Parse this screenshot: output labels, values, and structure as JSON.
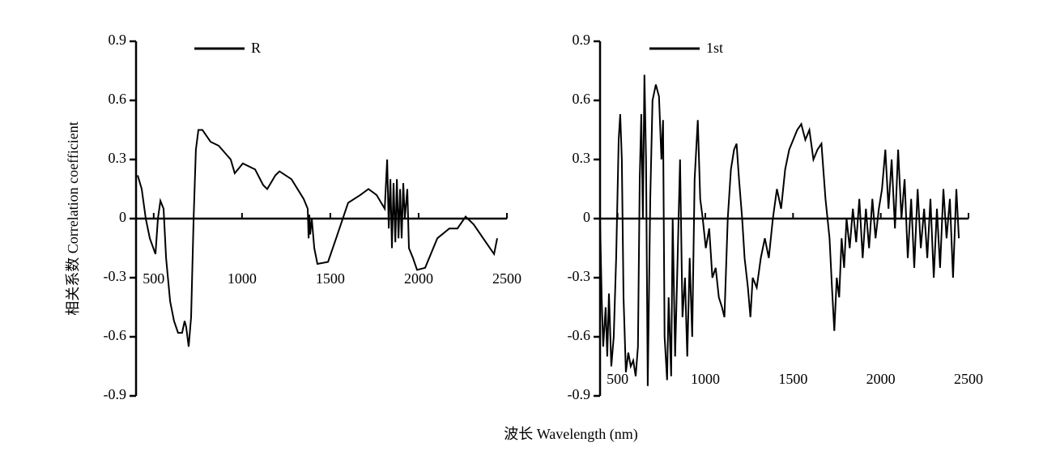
{
  "ylabel": "相关系数 Correlation coefficient",
  "xlabel": "波长 Wavelength (nm)",
  "chart_data": [
    {
      "type": "line",
      "xlim": [
        400,
        2500
      ],
      "ylim": [
        -0.9,
        0.9
      ],
      "xticks": [
        500,
        1000,
        1500,
        2000,
        2500
      ],
      "yticks": [
        0.9,
        0.6,
        0.3,
        0,
        -0.3,
        -0.6,
        -0.9
      ],
      "x": [
        409,
        432,
        455,
        478,
        510,
        524,
        538,
        556,
        570,
        593,
        615,
        638,
        661,
        675,
        684,
        698,
        712,
        726,
        739,
        753,
        776,
        822,
        868,
        936,
        959,
        1005,
        1074,
        1120,
        1143,
        1189,
        1212,
        1280,
        1349,
        1372,
        1377,
        1381,
        1386,
        1395,
        1409,
        1427,
        1487,
        1533,
        1601,
        1670,
        1716,
        1762,
        1808,
        1822,
        1831,
        1840,
        1849,
        1858,
        1868,
        1877,
        1886,
        1895,
        1904,
        1913,
        1922,
        1936,
        1945,
        1968,
        1991,
        2037,
        2106,
        2174,
        2220,
        2266,
        2312,
        2381,
        2427,
        2445
      ],
      "series": [
        {
          "name": "R",
          "color": "#000000",
          "values": [
            0.22,
            0.15,
            0.0,
            -0.1,
            -0.18,
            0.0,
            0.09,
            0.05,
            -0.2,
            -0.42,
            -0.52,
            -0.58,
            -0.58,
            -0.52,
            -0.55,
            -0.65,
            -0.5,
            0.0,
            0.35,
            0.45,
            0.45,
            0.39,
            0.37,
            0.3,
            0.23,
            0.28,
            0.25,
            0.17,
            0.15,
            0.22,
            0.24,
            0.2,
            0.1,
            0.05,
            -0.1,
            0.02,
            -0.08,
            0.0,
            -0.15,
            -0.23,
            -0.22,
            -0.1,
            0.08,
            0.12,
            0.15,
            0.12,
            0.05,
            0.3,
            -0.05,
            0.2,
            -0.15,
            0.18,
            -0.12,
            0.2,
            -0.1,
            0.15,
            -0.1,
            0.18,
            0.0,
            0.15,
            -0.15,
            -0.2,
            -0.26,
            -0.25,
            -0.1,
            -0.05,
            -0.05,
            0.01,
            -0.03,
            -0.12,
            -0.18,
            -0.1
          ]
        }
      ]
    },
    {
      "type": "line",
      "xlim": [
        400,
        2500
      ],
      "ylim": [
        -0.9,
        0.9
      ],
      "xticks": [
        500,
        1000,
        1500,
        2000,
        2500
      ],
      "yticks": [
        0.9,
        0.6,
        0.3,
        0,
        -0.3,
        -0.6,
        -0.9
      ],
      "x": [
        400,
        409,
        418,
        432,
        441,
        451,
        464,
        478,
        492,
        506,
        515,
        524,
        534,
        547,
        561,
        575,
        589,
        603,
        616,
        626,
        635,
        644,
        653,
        662,
        672,
        686,
        699,
        718,
        736,
        750,
        759,
        768,
        782,
        791,
        805,
        814,
        828,
        842,
        856,
        870,
        884,
        897,
        911,
        925,
        939,
        957,
        971,
        985,
        1003,
        1022,
        1040,
        1059,
        1077,
        1095,
        1109,
        1128,
        1146,
        1164,
        1178,
        1192,
        1210,
        1224,
        1243,
        1257,
        1270,
        1293,
        1316,
        1339,
        1362,
        1385,
        1408,
        1432,
        1455,
        1478,
        1501,
        1524,
        1547,
        1570,
        1593,
        1616,
        1639,
        1662,
        1685,
        1708,
        1722,
        1735,
        1749,
        1763,
        1777,
        1791,
        1805,
        1823,
        1841,
        1860,
        1878,
        1897,
        1915,
        1933,
        1952,
        1970,
        1989,
        2007,
        2026,
        2044,
        2062,
        2081,
        2099,
        2118,
        2136,
        2154,
        2173,
        2191,
        2210,
        2228,
        2247,
        2265,
        2283,
        2302,
        2320,
        2338,
        2357,
        2375,
        2394,
        2412,
        2431,
        2445
      ],
      "series": [
        {
          "name": "1st",
          "color": "#000000",
          "values": [
            0.0,
            -0.4,
            -0.65,
            -0.45,
            -0.7,
            -0.38,
            -0.75,
            -0.6,
            -0.2,
            0.4,
            0.53,
            0.3,
            -0.4,
            -0.78,
            -0.68,
            -0.75,
            -0.72,
            -0.8,
            -0.65,
            0.2,
            0.53,
            0.0,
            0.73,
            0.3,
            -0.85,
            0.1,
            0.6,
            0.68,
            0.62,
            0.3,
            0.5,
            -0.6,
            -0.82,
            -0.4,
            -0.8,
            0.0,
            -0.7,
            -0.2,
            0.3,
            -0.5,
            -0.3,
            -0.7,
            -0.2,
            -0.6,
            0.2,
            0.5,
            0.1,
            0.0,
            -0.15,
            -0.05,
            -0.3,
            -0.25,
            -0.4,
            -0.45,
            -0.5,
            0.0,
            0.25,
            0.35,
            0.38,
            0.2,
            0.0,
            -0.2,
            -0.35,
            -0.5,
            -0.3,
            -0.35,
            -0.2,
            -0.1,
            -0.2,
            0.0,
            0.15,
            0.05,
            0.25,
            0.35,
            0.4,
            0.45,
            0.48,
            0.4,
            0.45,
            0.3,
            0.35,
            0.38,
            0.1,
            -0.1,
            -0.35,
            -0.57,
            -0.3,
            -0.4,
            -0.1,
            -0.25,
            0.0,
            -0.15,
            0.05,
            -0.12,
            0.1,
            -0.2,
            0.05,
            -0.15,
            0.1,
            -0.1,
            0.05,
            0.15,
            0.35,
            0.05,
            0.3,
            -0.05,
            0.35,
            0.0,
            0.2,
            -0.2,
            0.1,
            -0.25,
            0.15,
            -0.15,
            0.05,
            -0.2,
            0.1,
            -0.3,
            0.05,
            -0.25,
            0.15,
            -0.1,
            0.1,
            -0.3,
            0.15,
            -0.1
          ]
        }
      ]
    }
  ]
}
